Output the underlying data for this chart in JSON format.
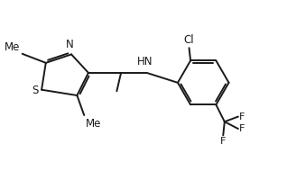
{
  "bg_color": "#ffffff",
  "line_color": "#1a1a1a",
  "line_width": 1.4,
  "font_size": 8.5,
  "figsize": [
    3.18,
    1.9
  ],
  "dpi": 100,
  "xlim": [
    0,
    10
  ],
  "ylim": [
    0,
    6
  ]
}
